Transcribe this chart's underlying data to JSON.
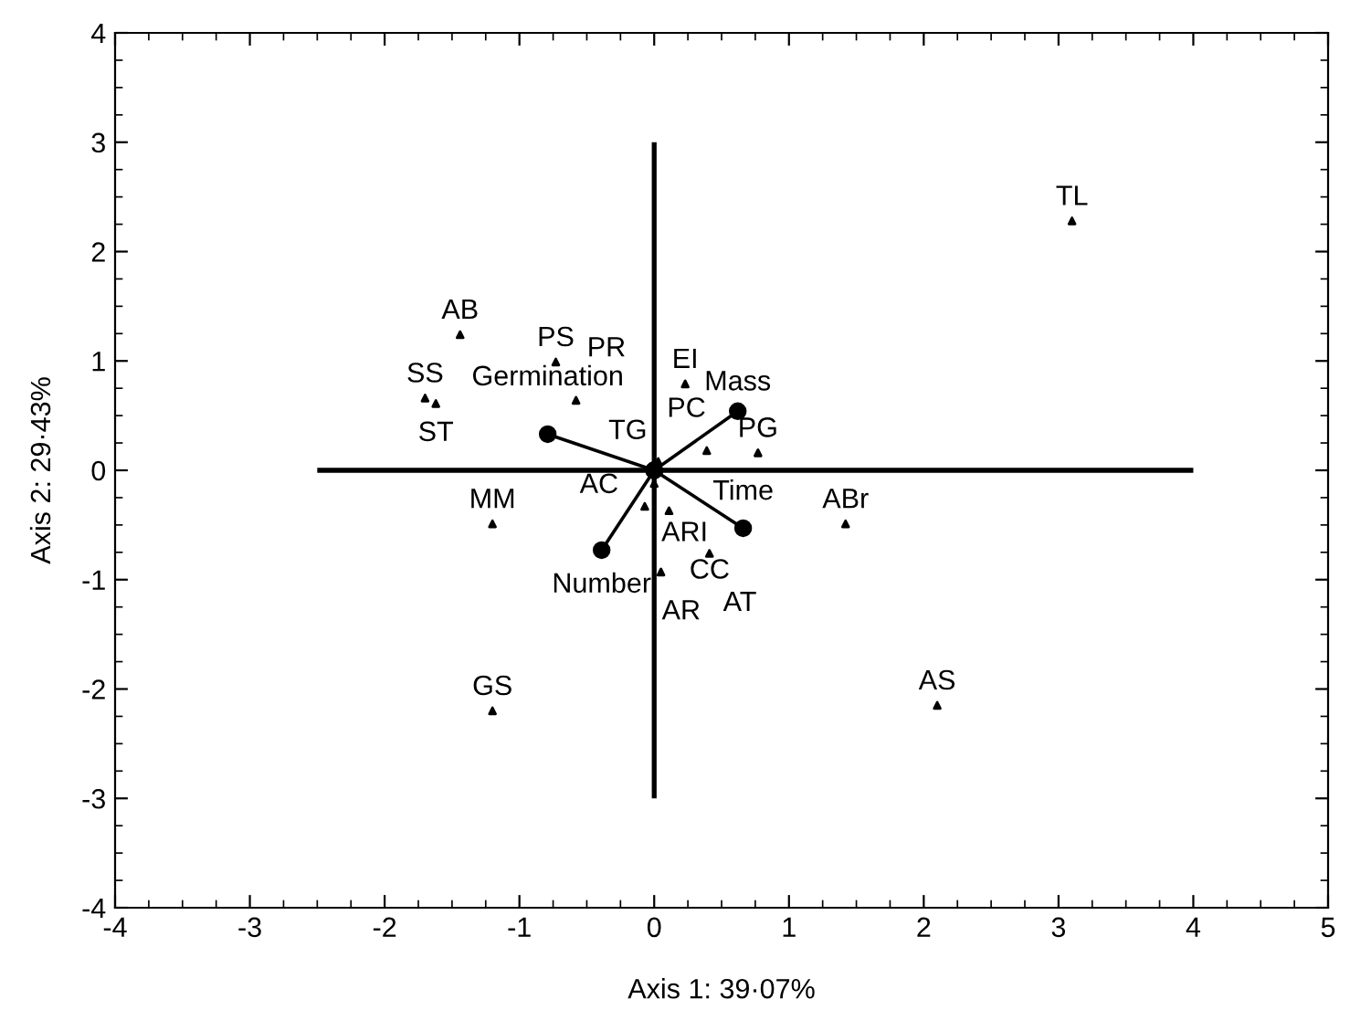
{
  "chart_data": {
    "type": "scatter",
    "xlabel": "Axis 1: 39·07%",
    "ylabel": "Axis 2: 29·43%",
    "xlim": [
      -4,
      5
    ],
    "ylim": [
      -4,
      4
    ],
    "xticks": [
      -4,
      -3,
      -2,
      -1,
      0,
      1,
      2,
      3,
      4,
      5
    ],
    "yticks": [
      -4,
      -3,
      -2,
      -1,
      0,
      1,
      2,
      3,
      4
    ],
    "grid": false,
    "legend": false,
    "series": [
      {
        "type": "line",
        "color": "#000000",
        "x": [
          -2.5,
          4
        ],
        "values": [
          0,
          0
        ],
        "marker": "none"
      },
      {
        "type": "line",
        "color": "#000000",
        "x": [
          0,
          0
        ],
        "values": [
          3,
          -3
        ],
        "marker": "none"
      },
      {
        "type": "line",
        "name": "Germination",
        "color": "#000000",
        "x": [
          0,
          -0.79
        ],
        "values": [
          0,
          0.33
        ],
        "marker": "circle"
      },
      {
        "type": "line",
        "name": "Mass",
        "color": "#000000",
        "x": [
          0,
          0.62
        ],
        "values": [
          0,
          0.54
        ],
        "marker": "circle"
      },
      {
        "type": "line",
        "name": "Time",
        "color": "#000000",
        "x": [
          0,
          0.66
        ],
        "values": [
          0,
          -0.53
        ],
        "marker": "circle"
      },
      {
        "type": "line",
        "name": "Number",
        "color": "#000000",
        "x": [
          0,
          -0.39
        ],
        "values": [
          0,
          -0.73
        ],
        "marker": "circle"
      },
      {
        "color": "#000000",
        "marker": "triangle",
        "x": [
          3.1,
          -1.44,
          -1.7,
          -1.62,
          -0.73,
          -0.58,
          0.23,
          0.39,
          0.77,
          0.03,
          0.0,
          -0.07,
          0.11,
          0.05,
          0.41,
          1.42,
          -1.2,
          -1.2,
          2.1
        ],
        "values": [
          2.28,
          1.24,
          0.66,
          0.61,
          0.99,
          0.64,
          0.79,
          0.18,
          0.16,
          0.08,
          -0.12,
          -0.33,
          -0.37,
          -0.93,
          -0.76,
          -0.49,
          -0.49,
          -2.2,
          -2.15
        ]
      }
    ],
    "annotations": [
      {
        "text": "TL",
        "x": 3.1,
        "y": 2.28
      },
      {
        "text": "AB",
        "x": -1.44,
        "y": 1.24
      },
      {
        "text": "SS",
        "x": -1.7,
        "y": 0.66
      },
      {
        "text": "ST",
        "x": -1.62,
        "y": 0.61
      },
      {
        "text": "PS",
        "x": -0.73,
        "y": 0.99
      },
      {
        "text": "PR",
        "x": -0.58,
        "y": 0.64
      },
      {
        "text": "EI",
        "x": 0.23,
        "y": 0.79
      },
      {
        "text": "PC",
        "x": 0.39,
        "y": 0.18
      },
      {
        "text": "PG",
        "x": 0.77,
        "y": 0.16
      },
      {
        "text": "TG",
        "x": 0.03,
        "y": 0.08
      },
      {
        "text": "ARI",
        "x": 0.0,
        "y": -0.12
      },
      {
        "text": "AC",
        "x": -0.07,
        "y": -0.33
      },
      {
        "text": "CC",
        "x": 0.11,
        "y": -0.37
      },
      {
        "text": "AR",
        "x": 0.05,
        "y": -0.93
      },
      {
        "text": "AT",
        "x": 0.41,
        "y": -0.76
      },
      {
        "text": "ABr",
        "x": 1.42,
        "y": -0.49
      },
      {
        "text": "MM",
        "x": -1.2,
        "y": -0.49
      },
      {
        "text": "GS",
        "x": -1.2,
        "y": -2.2
      },
      {
        "text": "AS",
        "x": 2.1,
        "y": -2.15
      }
    ]
  }
}
